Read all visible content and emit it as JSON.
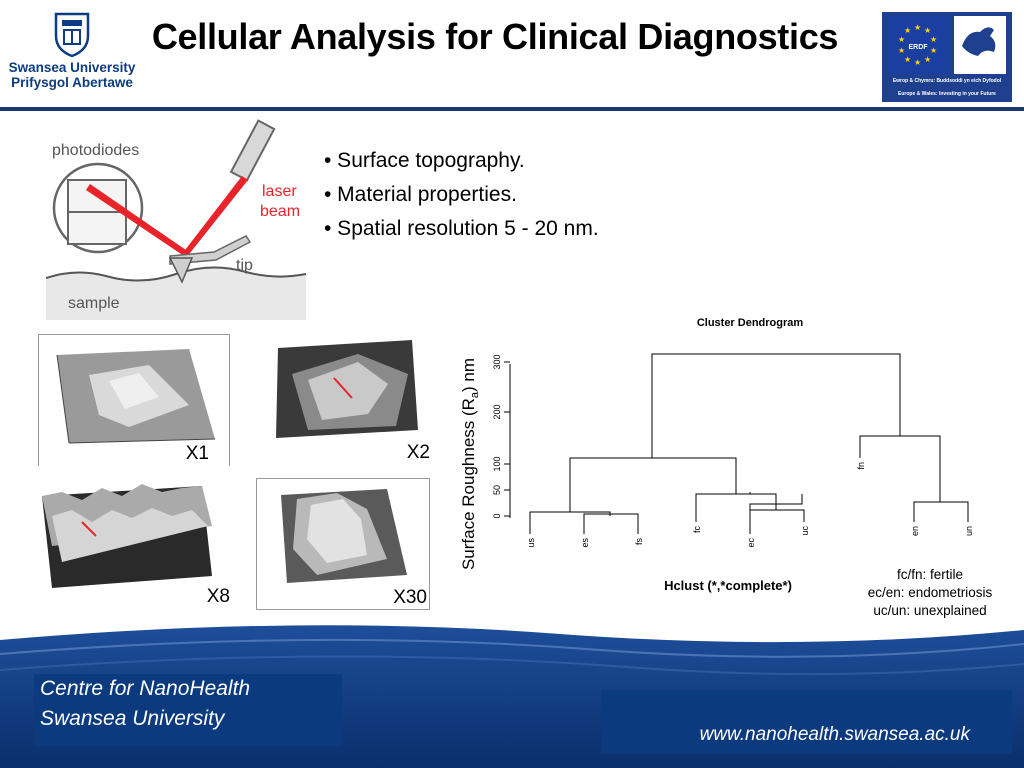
{
  "header": {
    "university_line1": "Swansea University",
    "university_line2": "Prifysgol Abertawe",
    "title": "Cellular Analysis for Clinical Diagnostics",
    "erdf_label": "ERDF",
    "erdf_line1": "Ewrop & Chymru: Buddsoddi yn eich Dyfodol",
    "erdf_line2": "Europe & Wales: Investing in your Future"
  },
  "afm_diagram": {
    "photodiodes": "photodiodes",
    "laser": "laser",
    "beam": "beam",
    "tip": "tip",
    "sample": "sample"
  },
  "bullets": [
    "• Surface topography.",
    "• Material properties.",
    "• Spatial resolution 5 - 20 nm."
  ],
  "scans": [
    {
      "label": "X1"
    },
    {
      "label": "X2"
    },
    {
      "label": "X8"
    },
    {
      "label": "X30"
    }
  ],
  "dendrogram": {
    "title": "Cluster Dendrogram",
    "ylabel_main": "Surface Roughness (R",
    "ylabel_sub": "a",
    "ylabel_tail": ") nm",
    "xlabel": "Hclust (*,*complete*)",
    "ticks": [
      "0",
      "50",
      "100",
      "200",
      "300"
    ],
    "leaves": [
      "us",
      "es",
      "fs",
      "fc",
      "ec",
      "uc",
      "fn",
      "en",
      "un"
    ]
  },
  "legend": [
    "fc/fn: fertile",
    "ec/en: endometriosis",
    "uc/un: unexplained"
  ],
  "footer": {
    "centre_line1": "Centre for NanoHealth",
    "centre_line2": "Swansea University",
    "url": "www.nanohealth.swansea.ac.uk"
  },
  "colors": {
    "navy": "#0b3a7e",
    "laser_red": "#e8232a"
  }
}
